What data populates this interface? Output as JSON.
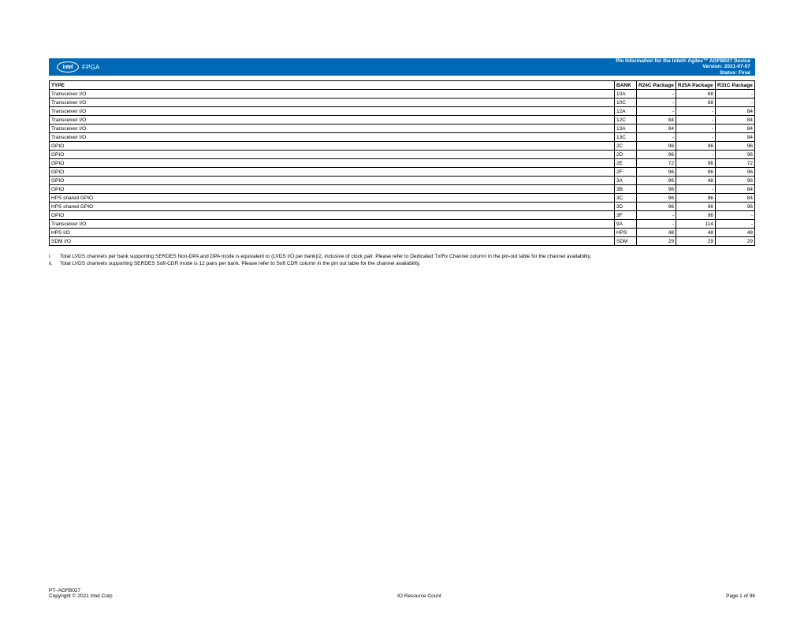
{
  "header": {
    "logo_text": "intel",
    "logo_sub": "FPGA",
    "title": "Pin Information for the Intel® Agilex™ AGFB027 Device",
    "version": "Version: 2021-07-07",
    "status": "Status: Final"
  },
  "table": {
    "columns": [
      "TYPE",
      "BANK",
      "R24C Package",
      "R25A Package",
      "R31C Package"
    ],
    "rows": [
      [
        "Transceiver I/O",
        "10A",
        "-",
        "68",
        "-"
      ],
      [
        "Transceiver I/O",
        "10C",
        "-",
        "68",
        "-"
      ],
      [
        "Transceiver I/O",
        "12A",
        "-",
        "-",
        "84"
      ],
      [
        "Transceiver I/O",
        "12C",
        "84",
        "-",
        "84"
      ],
      [
        "Transceiver I/O",
        "13A",
        "84",
        "-",
        "84"
      ],
      [
        "Transceiver I/O",
        "13C",
        "-",
        "-",
        "84"
      ],
      [
        "GPIO",
        "2C",
        "96",
        "96",
        "96"
      ],
      [
        "GPIO",
        "2D",
        "96",
        "-",
        "96"
      ],
      [
        "GPIO",
        "2E",
        "72",
        "96",
        "72"
      ],
      [
        "GPIO",
        "2F",
        "96",
        "96",
        "96"
      ],
      [
        "GPIO",
        "3A",
        "96",
        "48",
        "96"
      ],
      [
        "GPIO",
        "3B",
        "96",
        "-",
        "84"
      ],
      [
        "HPS shared GPIO",
        "3C",
        "96",
        "96",
        "84"
      ],
      [
        "HPS shared GPIO",
        "3D",
        "96",
        "96",
        "96"
      ],
      [
        "GPIO",
        "3F",
        "-",
        "96",
        "-"
      ],
      [
        "Transceiver I/O",
        "9A",
        "-",
        "114",
        "-"
      ],
      [
        "HPS I/O",
        "HPS",
        "48",
        "48",
        "48"
      ],
      [
        "SDM I/O",
        "SDM",
        "29",
        "29",
        "29"
      ]
    ]
  },
  "notes": [
    {
      "num": "i.",
      "text": "Total LVDS channels per bank supporting SERDES Non-DPA and DPA mode is equivalent to (LVDS I/O per bank)/2, inclusive of clock pair. Please refer to Dedicated Tx/Rx Channel column in the pin-out table for the channel availability."
    },
    {
      "num": "ii.",
      "text": "Total LVDS channels supporting SERDES Soft-CDR mode is 12 pairs per bank. Please refer to Soft CDR column in the pin out table for the channel availability."
    }
  ],
  "footer": {
    "pt": "PT- AGFB027",
    "copyright": "Copyright © 2021 Intel Corp",
    "center": "IO Resource Count",
    "page": "Page 1 of 96"
  },
  "style": {
    "header_bg": "#0068b5",
    "header_fg": "#ffffff",
    "border_color": "#000000",
    "body_bg": "#ffffff",
    "font_size_table": 6.5,
    "font_size_notes": 6.5
  }
}
